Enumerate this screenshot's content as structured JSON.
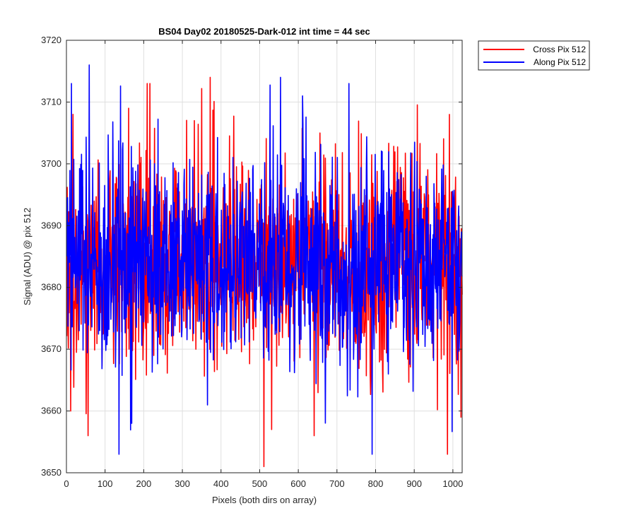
{
  "chart_data": {
    "type": "line",
    "title": "BS04 Day02 20180525-Dark-012 int time = 44 sec",
    "xlabel": "Pixels (both dirs on array)",
    "ylabel": "Signal (ADU) @ pix 512",
    "xlim": [
      0,
      1024
    ],
    "ylim": [
      3650,
      3720
    ],
    "xticks": [
      0,
      100,
      200,
      300,
      400,
      500,
      600,
      700,
      800,
      900,
      1000
    ],
    "yticks": [
      3650,
      3660,
      3670,
      3680,
      3690,
      3700,
      3710,
      3720
    ],
    "grid": true,
    "legend_position": "outside-top-right",
    "noise_model": {
      "mean": 3684,
      "std": 8.5,
      "n_points": 1024,
      "min_observed": 3651,
      "max_observed": 3716
    },
    "series": [
      {
        "name": "Cross Pix 512",
        "color": "#ff0000",
        "notable_points": [
          [
            10,
            3660
          ],
          [
            55,
            3656
          ],
          [
            160,
            3709
          ],
          [
            208,
            3713
          ],
          [
            215,
            3713
          ],
          [
            330,
            3707
          ],
          [
            510,
            3651
          ],
          [
            530,
            3657
          ],
          [
            640,
            3656
          ],
          [
            655,
            3705
          ],
          [
            985,
            3653
          ],
          [
            990,
            3708
          ],
          [
            1020,
            3659
          ]
        ]
      },
      {
        "name": "Along Pix 512",
        "color": "#0000ff",
        "notable_points": [
          [
            12,
            3713
          ],
          [
            58,
            3716
          ],
          [
            135,
            3653
          ],
          [
            168,
            3658
          ],
          [
            553,
            3714
          ],
          [
            610,
            3711
          ],
          [
            730,
            3713
          ],
          [
            790,
            3653
          ]
        ]
      }
    ]
  }
}
